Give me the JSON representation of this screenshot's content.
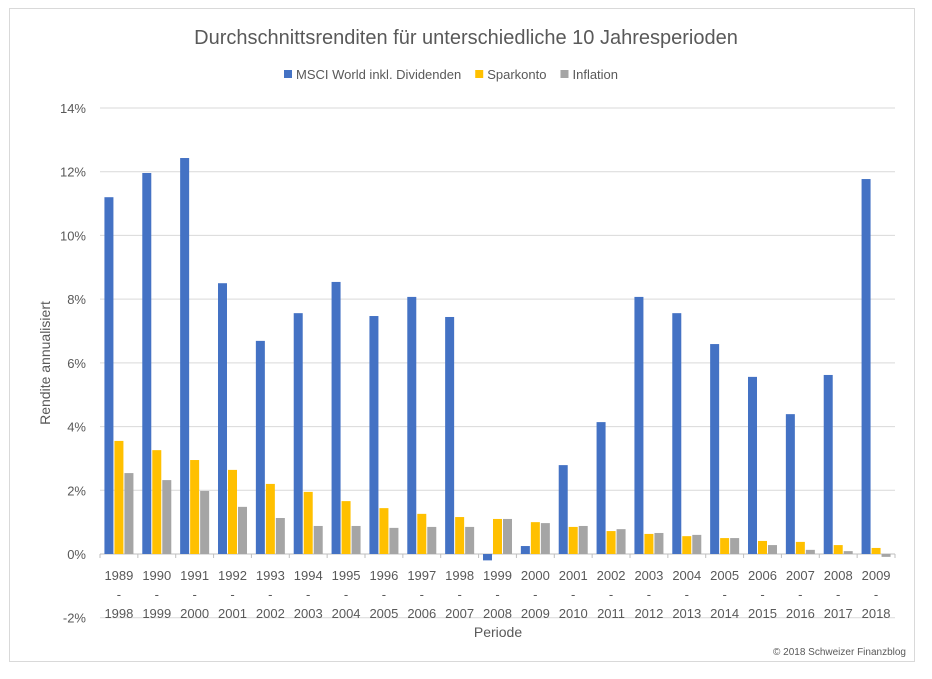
{
  "chart_data": {
    "type": "bar",
    "title": "Durchschnittsrenditen für unterschiedliche 10 Jahresperioden",
    "xlabel": "Periode",
    "ylabel": "Rendite annualisiert",
    "ylim": [
      -2,
      14
    ],
    "yticks": [
      -2,
      0,
      2,
      4,
      6,
      8,
      10,
      12,
      14
    ],
    "ytick_suffix": "%",
    "grid": true,
    "legend_position": "top",
    "categories": [
      [
        "1989",
        "-",
        "1998"
      ],
      [
        "1990",
        "-",
        "1999"
      ],
      [
        "1991",
        "-",
        "2000"
      ],
      [
        "1992",
        "-",
        "2001"
      ],
      [
        "1993",
        "-",
        "2002"
      ],
      [
        "1994",
        "-",
        "2003"
      ],
      [
        "1995",
        "-",
        "2004"
      ],
      [
        "1996",
        "-",
        "2005"
      ],
      [
        "1997",
        "-",
        "2006"
      ],
      [
        "1998",
        "-",
        "2007"
      ],
      [
        "1999",
        "-",
        "2008"
      ],
      [
        "2000",
        "-",
        "2009"
      ],
      [
        "2001",
        "-",
        "2010"
      ],
      [
        "2002",
        "-",
        "2011"
      ],
      [
        "2003",
        "-",
        "2012"
      ],
      [
        "2004",
        "-",
        "2013"
      ],
      [
        "2005",
        "-",
        "2014"
      ],
      [
        "2006",
        "-",
        "2015"
      ],
      [
        "2007",
        "-",
        "2016"
      ],
      [
        "2008",
        "-",
        "2017"
      ],
      [
        "2009",
        "-",
        "2018"
      ]
    ],
    "series": [
      {
        "name": "MSCI World inkl. Dividenden",
        "color": "#4472c4",
        "values": [
          11.2,
          11.96,
          12.43,
          8.5,
          6.69,
          7.56,
          8.54,
          7.47,
          8.07,
          7.44,
          -0.2,
          0.25,
          2.79,
          4.14,
          8.07,
          7.56,
          6.59,
          5.56,
          4.39,
          5.62,
          11.77
        ]
      },
      {
        "name": "Sparkonto",
        "color": "#ffc000",
        "values": [
          3.55,
          3.26,
          2.95,
          2.64,
          2.2,
          1.95,
          1.66,
          1.44,
          1.26,
          1.16,
          1.1,
          1.0,
          0.85,
          0.72,
          0.63,
          0.56,
          0.5,
          0.41,
          0.38,
          0.28,
          0.19
        ]
      },
      {
        "name": "Inflation",
        "color": "#a5a5a5",
        "values": [
          2.54,
          2.32,
          1.98,
          1.48,
          1.13,
          0.88,
          0.88,
          0.82,
          0.85,
          0.85,
          1.1,
          0.97,
          0.88,
          0.78,
          0.66,
          0.6,
          0.5,
          0.28,
          0.13,
          0.09,
          -0.09
        ]
      }
    ],
    "copyright": "© 2018 Schweizer Finanzblog"
  }
}
